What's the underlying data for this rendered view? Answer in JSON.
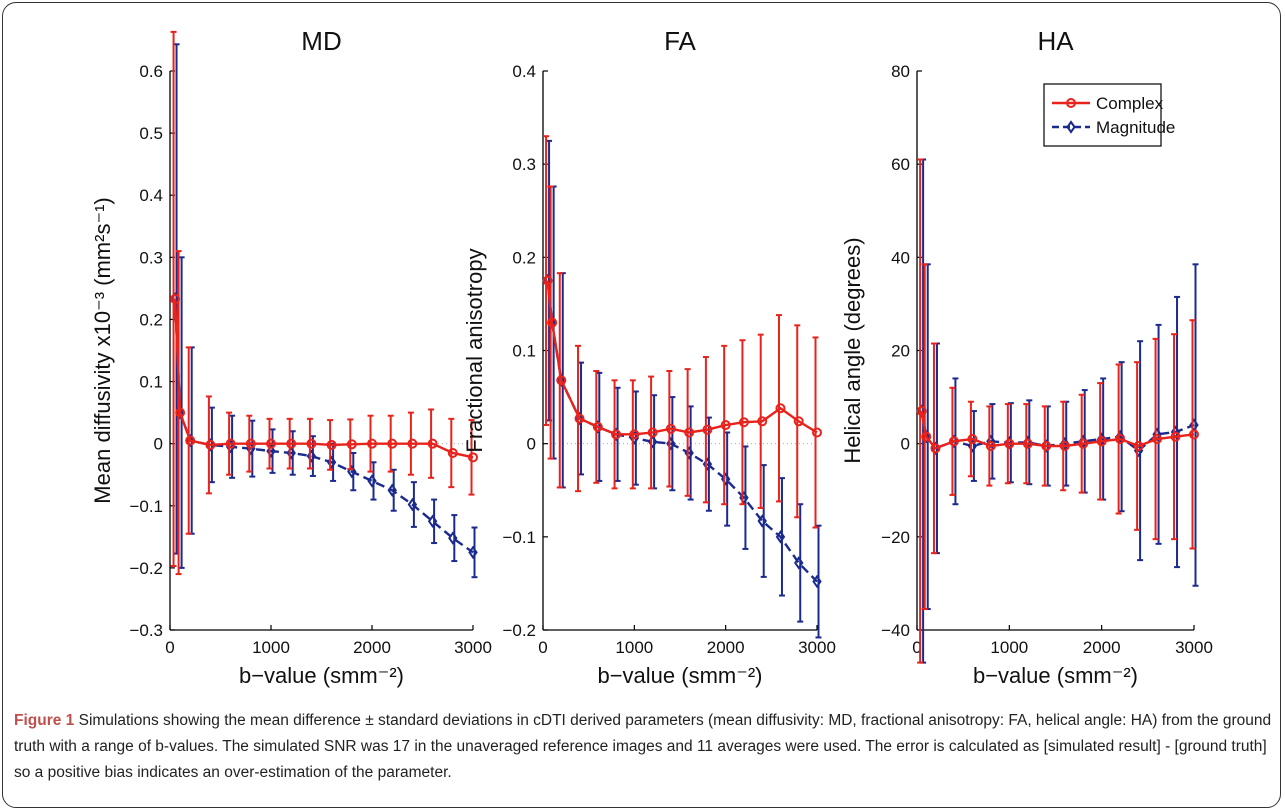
{
  "chart_data": [
    {
      "type": "line",
      "title": "MD",
      "xlabel": "b−value (smm⁻²)",
      "ylabel": "Mean diffusivity x10⁻³ (mm²s⁻¹)",
      "xlim": [
        0,
        3000
      ],
      "ylim": [
        -0.3,
        0.6
      ],
      "xticks": [
        0,
        1000,
        2000,
        3000
      ],
      "yticks": [
        -0.3,
        -0.2,
        -0.1,
        0,
        0.1,
        0.2,
        0.3,
        0.4,
        0.5,
        0.6
      ],
      "ytick_labels": [
        "−0.3",
        "−0.2",
        "−0.1",
        "0",
        "0.1",
        "0.2",
        "0.3",
        "0.4",
        "0.5",
        "0.6"
      ],
      "zero_line": true,
      "series": [
        {
          "name": "Complex",
          "color": "#e8231c",
          "x": [
            50,
            100,
            200,
            400,
            600,
            800,
            1000,
            1200,
            1400,
            1600,
            1800,
            2000,
            2200,
            2400,
            2600,
            2800,
            3000
          ],
          "y": [
            0.233,
            0.05,
            0.005,
            -0.002,
            0.0,
            0.0,
            0.0,
            0.0,
            0.0,
            -0.002,
            -0.001,
            0.0,
            0.0,
            0.0,
            0.0,
            -0.015,
            -0.022
          ],
          "err": [
            0.43,
            0.26,
            0.15,
            0.078,
            0.05,
            0.045,
            0.04,
            0.04,
            0.04,
            0.04,
            0.04,
            0.045,
            0.045,
            0.05,
            0.055,
            0.055,
            0.06
          ]
        },
        {
          "name": "Magnitude",
          "color": "#1b2a8f",
          "x": [
            50,
            100,
            200,
            400,
            600,
            800,
            1000,
            1200,
            1400,
            1600,
            1800,
            2000,
            2200,
            2400,
            2600,
            2800,
            3000
          ],
          "y": [
            0.233,
            0.05,
            0.005,
            -0.002,
            -0.005,
            -0.008,
            -0.012,
            -0.015,
            -0.02,
            -0.03,
            -0.045,
            -0.06,
            -0.075,
            -0.098,
            -0.125,
            -0.152,
            -0.175
          ],
          "err": [
            0.41,
            0.25,
            0.15,
            0.06,
            0.05,
            0.045,
            0.035,
            0.035,
            0.032,
            0.03,
            0.03,
            0.03,
            0.033,
            0.036,
            0.035,
            0.037,
            0.04
          ]
        }
      ]
    },
    {
      "type": "line",
      "title": "FA",
      "xlabel": "b−value (smm⁻²)",
      "ylabel": "Fractional anisotropy",
      "xlim": [
        0,
        3000
      ],
      "ylim": [
        -0.2,
        0.4
      ],
      "xticks": [
        0,
        1000,
        2000,
        3000
      ],
      "yticks": [
        -0.2,
        -0.1,
        0,
        0.1,
        0.2,
        0.3,
        0.4
      ],
      "ytick_labels": [
        "−0.2",
        "−0.1",
        "0",
        "0.1",
        "0.2",
        "0.3",
        "0.4"
      ],
      "zero_line": true,
      "series": [
        {
          "name": "Complex",
          "color": "#e8231c",
          "x": [
            50,
            100,
            200,
            400,
            600,
            800,
            1000,
            1200,
            1400,
            1600,
            1800,
            2000,
            2200,
            2400,
            2600,
            2800,
            3000
          ],
          "y": [
            0.175,
            0.13,
            0.068,
            0.027,
            0.018,
            0.01,
            0.01,
            0.012,
            0.016,
            0.012,
            0.015,
            0.02,
            0.023,
            0.024,
            0.038,
            0.024,
            0.012
          ],
          "err": [
            0.155,
            0.146,
            0.115,
            0.078,
            0.06,
            0.058,
            0.058,
            0.06,
            0.062,
            0.068,
            0.078,
            0.085,
            0.088,
            0.093,
            0.1,
            0.103,
            0.102
          ]
        },
        {
          "name": "Magnitude",
          "color": "#1b2a8f",
          "x": [
            50,
            100,
            200,
            400,
            600,
            800,
            1000,
            1200,
            1400,
            1600,
            1800,
            2000,
            2200,
            2400,
            2600,
            2800,
            3000
          ],
          "y": [
            0.175,
            0.13,
            0.068,
            0.027,
            0.018,
            0.01,
            0.006,
            0.002,
            0.0,
            -0.01,
            -0.022,
            -0.038,
            -0.058,
            -0.083,
            -0.1,
            -0.128,
            -0.148
          ],
          "err": [
            0.15,
            0.146,
            0.115,
            0.06,
            0.058,
            0.05,
            0.05,
            0.05,
            0.05,
            0.05,
            0.05,
            0.05,
            0.055,
            0.06,
            0.063,
            0.063,
            0.06
          ]
        }
      ]
    },
    {
      "type": "line",
      "title": "HA",
      "xlabel": "b−value (smm⁻²)",
      "ylabel": "Helical angle (degrees)",
      "xlim": [
        0,
        3000
      ],
      "ylim": [
        -40,
        80
      ],
      "xticks": [
        0,
        1000,
        2000,
        3000
      ],
      "yticks": [
        -40,
        -20,
        0,
        20,
        40,
        60,
        80
      ],
      "ytick_labels": [
        "−40",
        "−20",
        "0",
        "20",
        "40",
        "60",
        "80"
      ],
      "zero_line": false,
      "legend": {
        "position": "top-right",
        "entries": [
          "Complex",
          "Magnitude"
        ]
      },
      "series": [
        {
          "name": "Complex",
          "color": "#e8231c",
          "x": [
            50,
            100,
            200,
            400,
            600,
            800,
            1000,
            1200,
            1400,
            1600,
            1800,
            2000,
            2200,
            2400,
            2600,
            2800,
            3000
          ],
          "y": [
            7,
            1.5,
            -1,
            0.5,
            1,
            -0.5,
            0,
            0,
            -0.5,
            -0.5,
            0,
            0.5,
            1,
            -0.5,
            1,
            1.5,
            2
          ],
          "err": [
            54,
            37,
            22.5,
            11.5,
            8,
            8.5,
            8.5,
            8.5,
            8.5,
            9.5,
            10.5,
            12.5,
            16,
            18,
            21.5,
            22,
            24.5
          ]
        },
        {
          "name": "Magnitude",
          "color": "#1b2a8f",
          "x": [
            50,
            100,
            200,
            400,
            600,
            800,
            1000,
            1200,
            1400,
            1600,
            1800,
            2000,
            2200,
            2400,
            2600,
            2800,
            3000
          ],
          "y": [
            7,
            1.5,
            -1,
            0.5,
            -0.5,
            0.5,
            0.2,
            0.3,
            -0.5,
            0,
            0.5,
            1,
            1.5,
            -1.5,
            2,
            2.5,
            4
          ],
          "err": [
            54,
            37,
            22.5,
            13.5,
            7.5,
            8,
            8.5,
            9,
            8.5,
            9,
            11,
            13,
            16,
            23.5,
            23.5,
            29,
            34.5
          ]
        }
      ]
    }
  ],
  "caption": {
    "label": "Figure 1",
    "text": " Simulations showing the mean difference ± standard deviations in cDTI derived parameters (mean diffusivity: MD, fractional anisotropy: FA, helical angle: HA) from the ground truth with a range of b-values. The simulated SNR was 17 in the unaveraged reference images and 11 averages were used. The error is calculated as [simulated result] - [ground truth] so a positive bias indicates an over-estimation of the parameter."
  }
}
